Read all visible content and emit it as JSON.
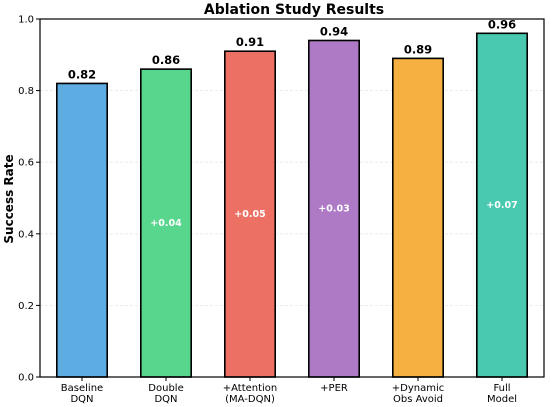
{
  "chart_data": {
    "type": "bar",
    "title": "Ablation Study Results",
    "xlabel": "",
    "ylabel": "Success Rate",
    "ylim": [
      0,
      1.0
    ],
    "yticks": [
      "0.0",
      "0.2",
      "0.4",
      "0.6",
      "0.8",
      "1.0"
    ],
    "grid": true,
    "categories": [
      [
        "Baseline",
        "DQN"
      ],
      [
        "Double",
        "DQN"
      ],
      [
        "+Attention",
        "(MA-DQN)"
      ],
      [
        "+PER"
      ],
      [
        "+Dynamic",
        "Obs Avoid"
      ],
      [
        "Full",
        "Model"
      ]
    ],
    "values": [
      0.82,
      0.86,
      0.91,
      0.94,
      0.89,
      0.96
    ],
    "value_labels": [
      "0.82",
      "0.86",
      "0.91",
      "0.94",
      "0.89",
      "0.96"
    ],
    "delta_labels": [
      "",
      "+0.04",
      "+0.05",
      "+0.03",
      "",
      "+0.07"
    ],
    "colors": [
      "#5dade2",
      "#58d68d",
      "#ec7063",
      "#af7ac5",
      "#f5b041",
      "#48c9b0"
    ]
  }
}
